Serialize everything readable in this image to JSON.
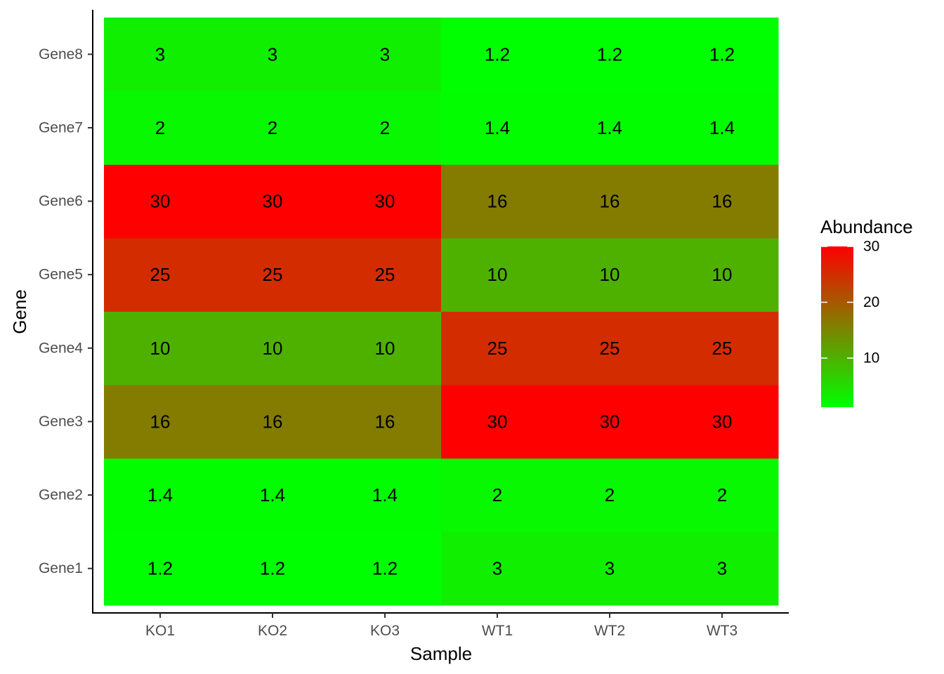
{
  "chart_data": {
    "type": "heatmap",
    "xlabel": "Sample",
    "ylabel": "Gene",
    "x_categories": [
      "KO1",
      "KO2",
      "KO3",
      "WT1",
      "WT2",
      "WT3"
    ],
    "y_categories": [
      "Gene1",
      "Gene2",
      "Gene3",
      "Gene4",
      "Gene5",
      "Gene6",
      "Gene7",
      "Gene8"
    ],
    "values": [
      [
        1.2,
        1.2,
        1.2,
        3,
        3,
        3
      ],
      [
        1.4,
        1.4,
        1.4,
        2,
        2,
        2
      ],
      [
        16,
        16,
        16,
        30,
        30,
        30
      ],
      [
        10,
        10,
        10,
        25,
        25,
        25
      ],
      [
        25,
        25,
        25,
        10,
        10,
        10
      ],
      [
        30,
        30,
        30,
        16,
        16,
        16
      ],
      [
        2,
        2,
        2,
        1.4,
        1.4,
        1.4
      ],
      [
        3,
        3,
        3,
        1.2,
        1.2,
        1.2
      ]
    ],
    "cell_labels": [
      [
        "1.2",
        "1.2",
        "1.2",
        "3",
        "3",
        "3"
      ],
      [
        "1.4",
        "1.4",
        "1.4",
        "2",
        "2",
        "2"
      ],
      [
        "16",
        "16",
        "16",
        "30",
        "30",
        "30"
      ],
      [
        "10",
        "10",
        "10",
        "25",
        "25",
        "25"
      ],
      [
        "25",
        "25",
        "25",
        "10",
        "10",
        "10"
      ],
      [
        "30",
        "30",
        "30",
        "16",
        "16",
        "16"
      ],
      [
        "2",
        "2",
        "2",
        "1.4",
        "1.4",
        "1.4"
      ],
      [
        "3",
        "3",
        "3",
        "1.2",
        "1.2",
        "1.2"
      ]
    ],
    "legend": {
      "title": "Abundance",
      "placement": "right",
      "ticks": [
        10,
        20,
        30
      ],
      "tick_labels": [
        "10",
        "20",
        "30"
      ],
      "range": [
        1.2,
        30
      ]
    },
    "colors": {
      "low": "#00ff00",
      "high": "#ff0000"
    },
    "grid": false
  }
}
